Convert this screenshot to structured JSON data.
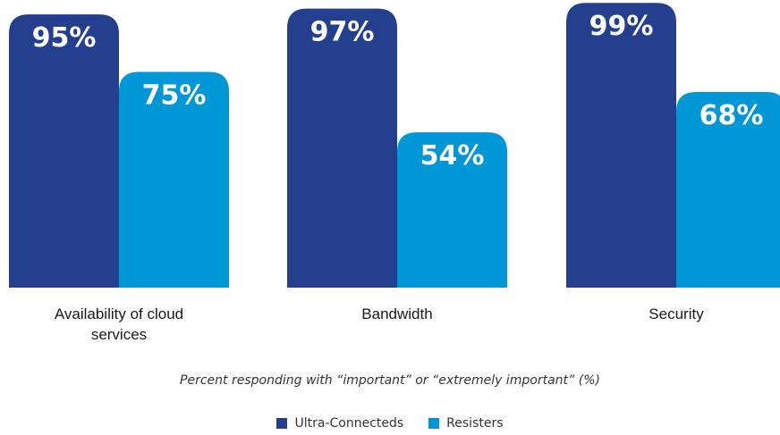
{
  "chart_data": {
    "type": "bar",
    "categories": [
      "Availability of cloud services",
      "Bandwidth",
      "Security"
    ],
    "category_lines": [
      [
        "Availability of cloud",
        "services"
      ],
      [
        "Bandwidth"
      ],
      [
        "Security"
      ]
    ],
    "series": [
      {
        "name": "Ultra-Connecteds",
        "values": [
          95,
          97,
          99
        ],
        "labels": [
          "95%",
          "97%",
          "99%"
        ],
        "color": "#253f8f"
      },
      {
        "name": "Resisters",
        "values": [
          75,
          54,
          68
        ],
        "labels": [
          "75%",
          "54%",
          "68%"
        ],
        "color": "#0097d6"
      }
    ],
    "xlabel": "Percent responding with “important” or “extremely important” (%)",
    "ylabel": "",
    "ylim": [
      0,
      100
    ],
    "grid": false,
    "legend": "bottom-center"
  }
}
